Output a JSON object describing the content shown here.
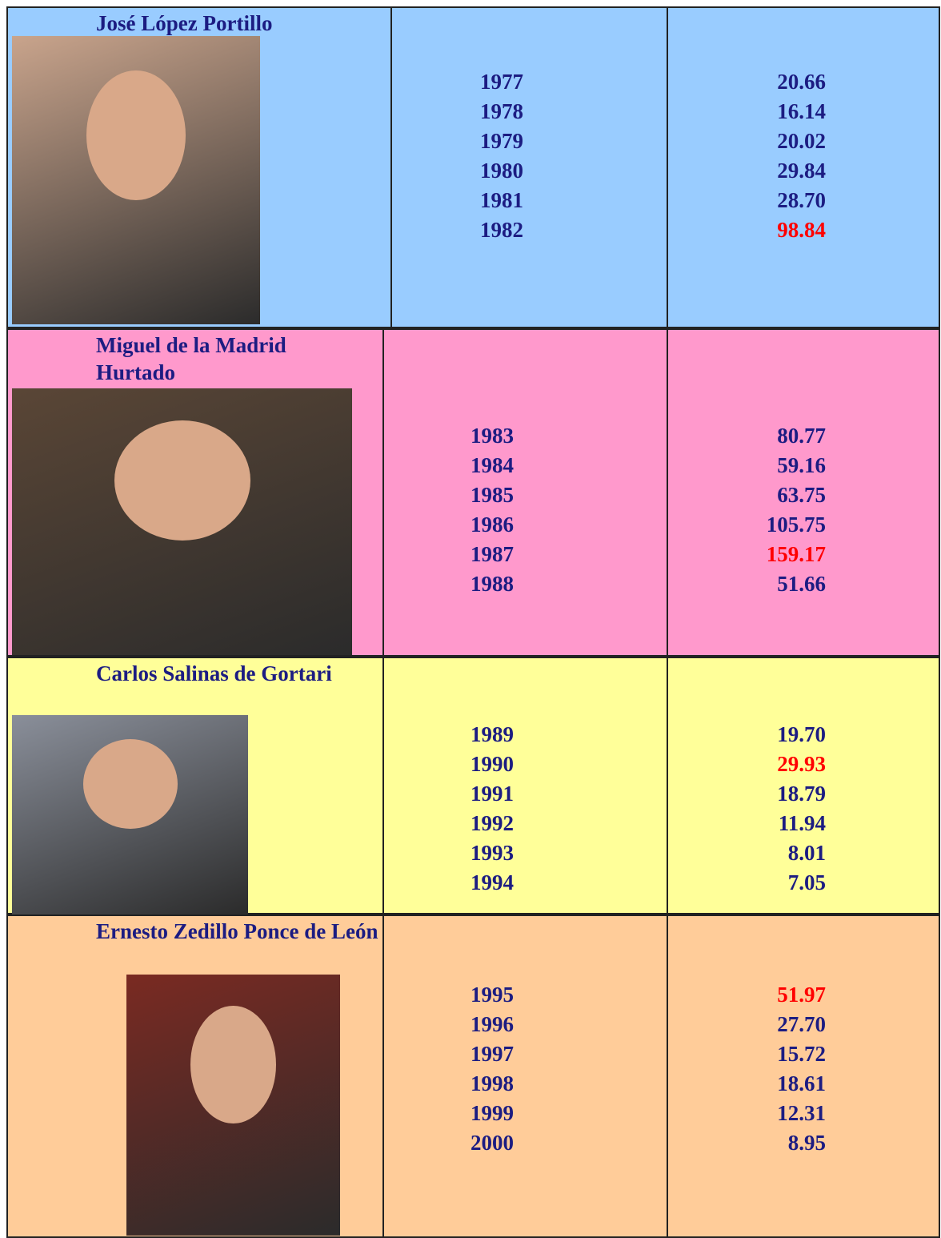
{
  "text_color": "#1c1c82",
  "highlight_color": "#ff0000",
  "table": {
    "rows": [
      {
        "name": "José López Portillo",
        "background": "#99ccff",
        "years": [
          "1977",
          "1978",
          "1979",
          "1980",
          "1981",
          "1982"
        ],
        "values": [
          "20.66",
          "16.14",
          "20.02",
          "29.84",
          "28.70",
          "98.84"
        ],
        "highlight": 5
      },
      {
        "name": "Miguel de la Madrid Hurtado",
        "background": "#ff99cc",
        "years": [
          "1983",
          "1984",
          "1985",
          "1986",
          "1987",
          "1988"
        ],
        "values": [
          "80.77",
          "59.16",
          "63.75",
          "105.75",
          "159.17",
          "51.66"
        ],
        "highlight": 4
      },
      {
        "name": "Carlos Salinas de Gortari",
        "background": "#ffff99",
        "years": [
          "1989",
          "1990",
          "1991",
          "1992",
          "1993",
          "1994"
        ],
        "values": [
          "19.70",
          "29.93",
          "18.79",
          "11.94",
          "8.01",
          "7.05"
        ],
        "highlight": 1
      },
      {
        "name": "Ernesto Zedillo Ponce de León",
        "background": "#ffcc99",
        "years": [
          "1995",
          "1996",
          "1997",
          "1998",
          "1999",
          "2000"
        ],
        "values": [
          "51.97",
          "27.70",
          "15.72",
          "18.61",
          "12.31",
          "8.95"
        ],
        "highlight": 0
      }
    ]
  }
}
